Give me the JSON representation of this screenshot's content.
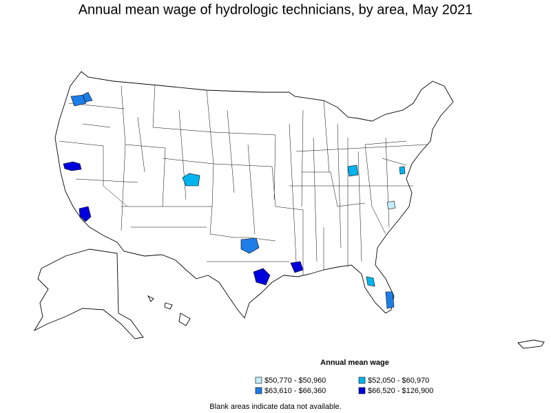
{
  "title": "Annual mean wage of hydrologic technicians, by area, May 2021",
  "legend": {
    "title": "Annual mean wage",
    "items": [
      {
        "label": "$50,770 - $50,960",
        "color": "#c4ecff"
      },
      {
        "label": "$52,050 - $60,970",
        "color": "#00b4f0"
      },
      {
        "label": "$63,610 - $66,360",
        "color": "#1e7ee8"
      },
      {
        "label": "$66,520 - $126,900",
        "color": "#0000dc"
      }
    ]
  },
  "footnote": "Blank areas indicate data not available."
}
